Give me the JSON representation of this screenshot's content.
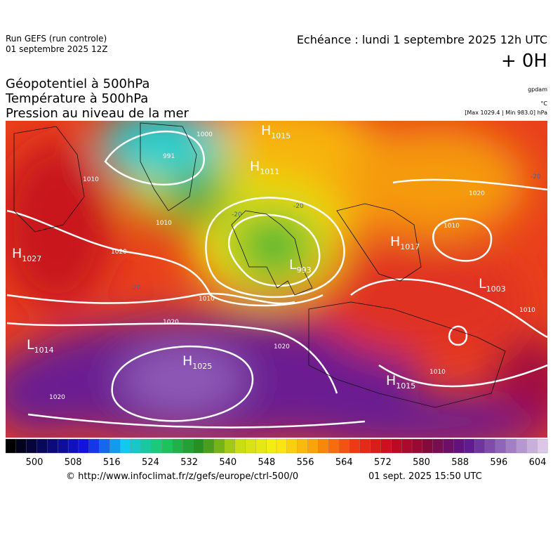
{
  "header": {
    "run": "Run GEFS (run controle)",
    "run_date": "01 septembre 2025 12Z",
    "echeance": "Echéance : lundi 1 septembre 2025 12h UTC",
    "lead": "+ 0H",
    "fields": [
      "Géopotentiel à 500hPa",
      "Température à 500hPa",
      "Pression au niveau de la mer"
    ],
    "units": [
      "gpdam",
      "°C",
      "[Max 1029.4 | Min 983.0] hPa"
    ]
  },
  "map": {
    "centers": [
      {
        "letter": "H",
        "value": "1015"
      },
      {
        "letter": "H",
        "value": "1011"
      },
      {
        "letter": "H",
        "value": "1027"
      },
      {
        "letter": "L",
        "value": "993"
      },
      {
        "letter": "H",
        "value": "1017"
      },
      {
        "letter": "L",
        "value": "1003"
      },
      {
        "letter": "L",
        "value": "1014"
      },
      {
        "letter": "H",
        "value": "1025"
      },
      {
        "letter": "H",
        "value": "1015"
      }
    ],
    "isobar_labels": [
      "1000",
      "991",
      "1010",
      "1010",
      "1020",
      "1010",
      "1020",
      "1020",
      "1020",
      "1020",
      "1010",
      "1010",
      "1010"
    ],
    "temperature_labels": [
      "-20",
      "-20",
      "-20",
      "-20"
    ]
  },
  "colorbar": {
    "ticks": [
      500,
      508,
      516,
      524,
      532,
      540,
      548,
      556,
      564,
      572,
      580,
      588,
      596,
      604
    ]
  },
  "footer": {
    "source": "© http://www.infoclimat.fr/z/gefs/europe/ctrl-500/0",
    "generated": "01 sept. 2025 15:50 UTC"
  }
}
